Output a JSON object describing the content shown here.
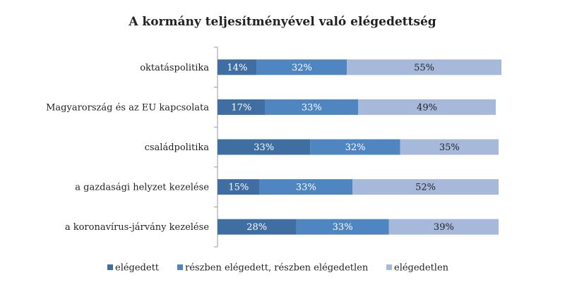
{
  "chart_data": {
    "type": "bar",
    "orientation": "horizontal",
    "stacked": true,
    "title": "A kormány teljesítményével való elégedettség",
    "categories": [
      "oktatáspolitika",
      "Magyarország és az EU kapcsolata",
      "családpolitika",
      "a gazdasági helyzet kezelése",
      "a koronavírus-járvány kezelése"
    ],
    "series": [
      {
        "name": "elégedett",
        "values": [
          14,
          17,
          33,
          15,
          28
        ],
        "labels": [
          "14%",
          "17%",
          "33%",
          "15%",
          "28%"
        ],
        "color": "#3f6ea3",
        "label_color": "#ffffff"
      },
      {
        "name": "részben elégedett, részben elégedetlen",
        "values": [
          32,
          33,
          32,
          33,
          33
        ],
        "labels": [
          "32%",
          "33%",
          "32%",
          "33%",
          "33%"
        ],
        "color": "#4f86c2",
        "label_color": "#ffffff"
      },
      {
        "name": "elégedetlen",
        "values": [
          55,
          49,
          35,
          52,
          39
        ],
        "labels": [
          "55%",
          "49%",
          "35%",
          "52%",
          "39%"
        ],
        "color": "#a7b9da",
        "label_color": "#222222"
      }
    ],
    "xlim": [
      0,
      100
    ],
    "grid": false,
    "legend_position": "bottom"
  }
}
